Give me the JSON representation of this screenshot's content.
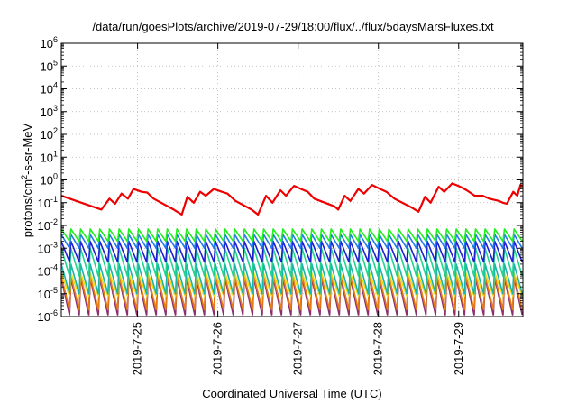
{
  "chart_data": {
    "type": "line",
    "title": "/data/run/goesPlots/archive/2019-07-29/18:00/flux/../flux/5daysMarsFluxes.txt",
    "xlabel": "Coordinated Universal Time (UTC)",
    "ylabel_pre": "protons/cm",
    "ylabel_sup": "2",
    "ylabel_post": "-s-sr-MeV",
    "yscale": "log",
    "ylim": [
      1e-06,
      1000000.0
    ],
    "ytick_exponents": [
      -6,
      -5,
      -4,
      -3,
      -2,
      -1,
      0,
      1,
      2,
      3,
      4,
      5,
      6
    ],
    "ytick_base": "10",
    "xlim": [
      24.05,
      29.8
    ],
    "xticks": [
      {
        "x": 25,
        "label": "2019-7-25"
      },
      {
        "x": 26,
        "label": "2019-7-26"
      },
      {
        "x": 27,
        "label": "2019-7-27"
      },
      {
        "x": 28,
        "label": "2019-7-28"
      },
      {
        "x": 29,
        "label": "2019-7-29"
      }
    ],
    "grid": true,
    "colors": {
      "red": "#ee0000",
      "green": "#22ee22",
      "blue": "#1f7aee",
      "navy": "#1f1fd2",
      "teal": "#1ab4a8",
      "mint": "#22d38f",
      "yellow": "#eedc16",
      "orange": "#e87b14",
      "purple": "#8a2f70"
    },
    "series": [
      {
        "color_key": "red",
        "lw": 2.2,
        "values": [
          [
            24.05,
            0.2
          ],
          [
            24.3,
            0.1
          ],
          [
            24.55,
            0.05
          ],
          [
            24.65,
            0.15
          ],
          [
            24.72,
            0.09
          ],
          [
            24.8,
            0.25
          ],
          [
            24.88,
            0.15
          ],
          [
            24.95,
            0.4
          ],
          [
            25.05,
            0.3
          ],
          [
            25.12,
            0.28
          ],
          [
            25.2,
            0.15
          ],
          [
            25.45,
            0.05
          ],
          [
            25.55,
            0.03
          ],
          [
            25.62,
            0.18
          ],
          [
            25.7,
            0.1
          ],
          [
            25.78,
            0.3
          ],
          [
            25.85,
            0.2
          ],
          [
            25.95,
            0.4
          ],
          [
            26.05,
            0.3
          ],
          [
            26.12,
            0.25
          ],
          [
            26.22,
            0.12
          ],
          [
            26.42,
            0.05
          ],
          [
            26.5,
            0.03
          ],
          [
            26.6,
            0.2
          ],
          [
            26.68,
            0.1
          ],
          [
            26.78,
            0.35
          ],
          [
            26.85,
            0.2
          ],
          [
            26.95,
            0.55
          ],
          [
            27.05,
            0.38
          ],
          [
            27.12,
            0.3
          ],
          [
            27.2,
            0.15
          ],
          [
            27.45,
            0.07
          ],
          [
            27.5,
            0.05
          ],
          [
            27.58,
            0.2
          ],
          [
            27.65,
            0.12
          ],
          [
            27.75,
            0.4
          ],
          [
            27.82,
            0.25
          ],
          [
            27.92,
            0.6
          ],
          [
            28.02,
            0.4
          ],
          [
            28.1,
            0.3
          ],
          [
            28.2,
            0.15
          ],
          [
            28.42,
            0.06
          ],
          [
            28.5,
            0.04
          ],
          [
            28.58,
            0.18
          ],
          [
            28.65,
            0.1
          ],
          [
            28.75,
            0.5
          ],
          [
            28.82,
            0.3
          ],
          [
            28.92,
            0.7
          ],
          [
            29.02,
            0.5
          ],
          [
            29.1,
            0.35
          ],
          [
            29.2,
            0.2
          ],
          [
            29.3,
            0.2
          ],
          [
            29.38,
            0.15
          ],
          [
            29.5,
            0.12
          ],
          [
            29.55,
            0.1
          ],
          [
            29.6,
            0.09
          ],
          [
            29.68,
            0.3
          ],
          [
            29.73,
            0.2
          ],
          [
            29.77,
            0.6
          ],
          [
            29.8,
            0.55
          ]
        ]
      },
      {
        "color_key": "purple",
        "lw": 1.8,
        "saw": {
          "start": 24.05,
          "end": 29.8,
          "period": 0.12,
          "hi": 5e-05,
          "lo": 1.2e-06
        }
      },
      {
        "color_key": "orange",
        "lw": 1.6,
        "saw": {
          "start": 24.05,
          "end": 29.8,
          "period": 0.12,
          "hi": 6e-05,
          "lo": 2e-06
        }
      },
      {
        "color_key": "yellow",
        "lw": 1.6,
        "saw": {
          "start": 24.05,
          "end": 29.8,
          "period": 0.12,
          "hi": 8e-05,
          "lo": 8e-06
        }
      },
      {
        "color_key": "teal",
        "lw": 1.6,
        "saw": {
          "start": 24.05,
          "end": 29.8,
          "period": 0.12,
          "hi": 0.0002,
          "lo": 1e-05
        }
      },
      {
        "color_key": "mint",
        "lw": 1.6,
        "saw": {
          "start": 24.05,
          "end": 29.8,
          "period": 0.12,
          "hi": 0.001,
          "lo": 6e-05
        }
      },
      {
        "color_key": "navy",
        "lw": 1.6,
        "saw": {
          "start": 24.05,
          "end": 29.8,
          "period": 0.12,
          "hi": 0.002,
          "lo": 0.00025
        }
      },
      {
        "color_key": "blue",
        "lw": 1.6,
        "saw": {
          "start": 24.05,
          "end": 29.8,
          "period": 0.12,
          "hi": 0.004,
          "lo": 0.001
        }
      },
      {
        "color_key": "green",
        "lw": 1.6,
        "saw": {
          "start": 24.05,
          "end": 29.8,
          "period": 0.12,
          "hi": 0.007,
          "lo": 0.002
        }
      }
    ]
  }
}
